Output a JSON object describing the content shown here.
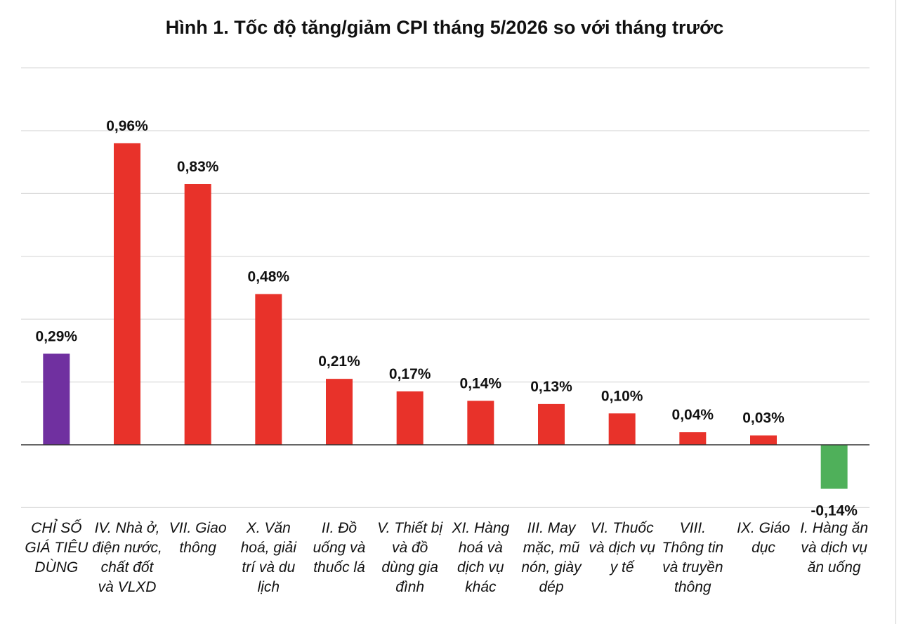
{
  "chart_data": {
    "type": "bar",
    "title": "Hình 1. Tốc độ tăng/giảm CPI tháng 5/2026 so với tháng trước",
    "xlabel": "",
    "ylabel": "",
    "ylim": [
      -0.2,
      1.2
    ],
    "grid": true,
    "legend": "none",
    "categories": [
      "CHỈ SỐ GIÁ TIÊU DÙNG",
      "IV. Nhà ở, điện nước, chất đốt và VLXD",
      "VII. Giao thông",
      "X. Văn hoá, giải trí và du lịch",
      "II. Đồ uống và thuốc lá",
      "V. Thiết bị và đồ dùng gia đình",
      "XI. Hàng hoá và dịch vụ khác",
      "III. May mặc, mũ nón, giày dép",
      "VI. Thuốc và dịch vụ y tế",
      "VIII. Thông tin và truyền thông",
      "IX. Giáo dục",
      "I. Hàng ăn và dịch vụ ăn uống"
    ],
    "values": [
      0.29,
      0.96,
      0.83,
      0.48,
      0.21,
      0.17,
      0.14,
      0.13,
      0.1,
      0.04,
      0.03,
      -0.14
    ],
    "data_labels": [
      "0,29%",
      "0,96%",
      "0,83%",
      "0,48%",
      "0,21%",
      "0,17%",
      "0,14%",
      "0,13%",
      "0,10%",
      "0,04%",
      "0,03%",
      "-0,14%"
    ],
    "colors": [
      "#7030a0",
      "#e8322a",
      "#e8322a",
      "#e8322a",
      "#e8322a",
      "#e8322a",
      "#e8322a",
      "#e8322a",
      "#e8322a",
      "#e8322a",
      "#e8322a",
      "#4fb05a"
    ]
  },
  "style": {
    "gridline_color": "#d9d9d9",
    "axis_color": "#333333",
    "text_color": "#111111"
  }
}
